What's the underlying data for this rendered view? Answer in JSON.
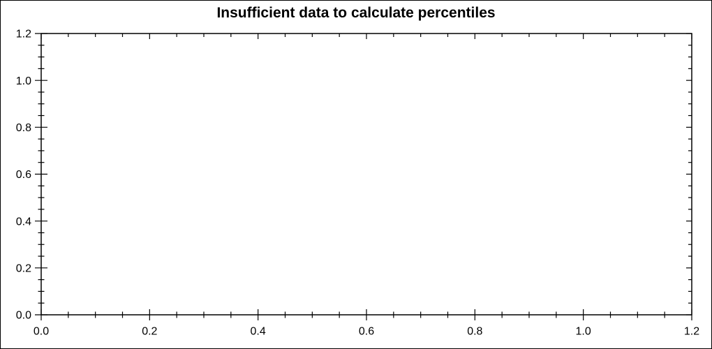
{
  "colors": {
    "axis": "#000000",
    "text": "#000000",
    "background": "#ffffff",
    "border": "#000000"
  },
  "chart_data": {
    "type": "line",
    "title": "Insufficient data to calculate percentiles",
    "series": [],
    "xlabel": "",
    "ylabel": "",
    "xlim": [
      0.0,
      1.2
    ],
    "ylim": [
      0.0,
      1.2
    ],
    "xticks": [
      "0.0",
      "0.2",
      "0.4",
      "0.6",
      "0.8",
      "1.0",
      "1.2"
    ],
    "yticks": [
      "0.0",
      "0.2",
      "0.4",
      "0.6",
      "0.8",
      "1.0",
      "1.2"
    ],
    "minor_tick_interval": 0.05,
    "grid": false,
    "legend": "none",
    "frame": true,
    "plot_area_empty": true
  }
}
